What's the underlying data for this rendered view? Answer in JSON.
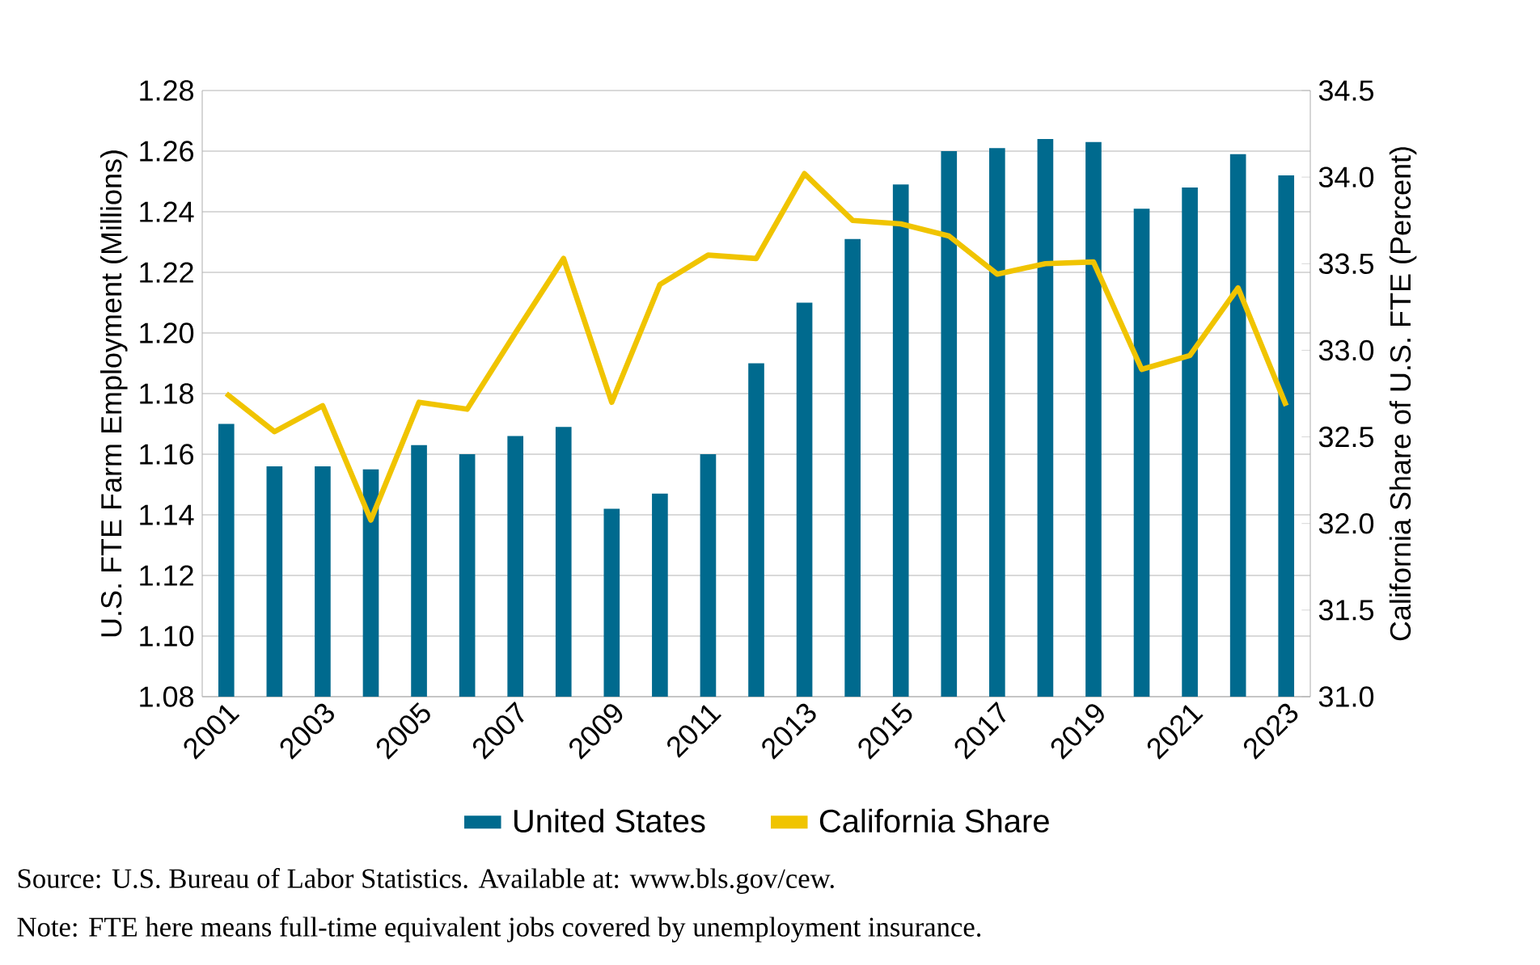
{
  "chart_data": {
    "type": "bar",
    "categories": [
      "2001",
      null,
      "2003",
      null,
      "2005",
      null,
      "2007",
      null,
      "2009",
      null,
      "2011",
      null,
      "2013",
      null,
      "2015",
      null,
      "2017",
      null,
      "2019",
      null,
      "2021",
      null,
      "2023"
    ],
    "series": [
      {
        "name": "United States",
        "color": "#006a8e",
        "values": [
          1.17,
          1.156,
          1.156,
          1.155,
          1.163,
          1.16,
          1.166,
          1.169,
          1.142,
          1.147,
          1.16,
          1.19,
          1.21,
          1.231,
          1.249,
          1.26,
          1.261,
          1.264,
          1.263,
          1.241,
          1.248,
          1.259,
          1.252
        ]
      },
      {
        "name": "California Share",
        "type": "line",
        "axis": "y2",
        "color": "#f0c400",
        "values": [
          32.75,
          32.53,
          32.68,
          32.02,
          32.7,
          32.66,
          33.1,
          33.53,
          32.7,
          33.38,
          33.55,
          33.53,
          34.02,
          33.75,
          33.73,
          33.66,
          33.44,
          33.5,
          33.51,
          32.89,
          32.97,
          33.36,
          32.68
        ]
      }
    ],
    "ylabel": "U.S. FTE Farm Employment (Millions)",
    "y2label": "California Share of U.S. FTE (Percent)",
    "ylim": [
      1.08,
      1.28
    ],
    "yticks": [
      1.08,
      {
        "value": 1.1,
        "label": "1.10"
      },
      1.12,
      1.14,
      1.16,
      1.18,
      {
        "value": 1.2,
        "label": "1.20"
      },
      1.22,
      1.24,
      1.26,
      1.28
    ],
    "y2lim": [
      31.0,
      34.5
    ],
    "y2ticks": [
      {
        "value": 31,
        "label": "31.0"
      },
      31.5,
      {
        "value": 32,
        "label": "32.0"
      },
      32.5,
      {
        "value": 33,
        "label": "33.0"
      },
      33.5,
      {
        "value": 34,
        "label": "34.0"
      },
      34.5
    ],
    "grid": "y",
    "legend": "bottom",
    "annotations": [
      "Source: U.S. Bureau of Labor Statistics. Available at: www.bls.gov/cew.",
      "Note: FTE here means full-time equivalent jobs covered by unemployment insurance."
    ]
  }
}
